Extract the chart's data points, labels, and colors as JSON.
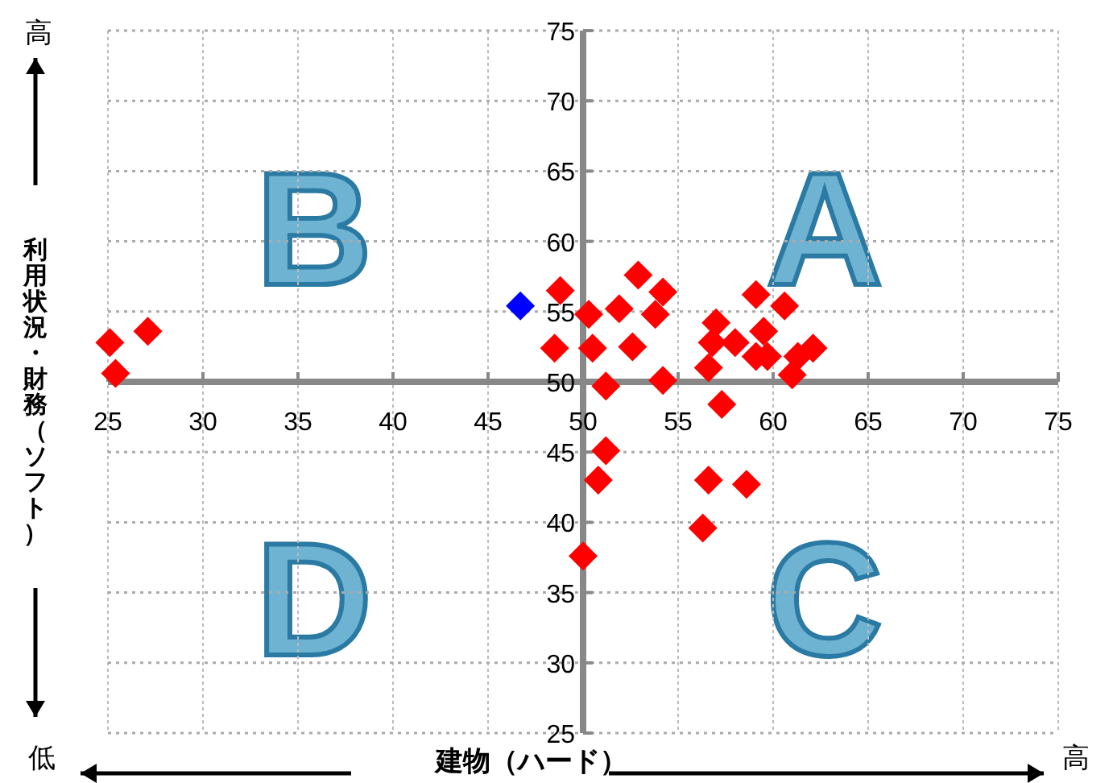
{
  "chart_data": {
    "type": "scatter",
    "xlabel": "建物（ハード）",
    "ylabel": "利用状況・財務（ソフト）",
    "annotations": [
      "A",
      "B",
      "C",
      "D",
      "高",
      "低",
      "高"
    ],
    "xlim": [
      25,
      75
    ],
    "ylim": [
      25,
      75
    ],
    "xticks": [
      25,
      30,
      35,
      40,
      45,
      50,
      55,
      60,
      65,
      70,
      75
    ],
    "yticks": [
      25,
      30,
      35,
      40,
      45,
      50,
      55,
      60,
      65,
      70,
      75
    ],
    "grid": true,
    "marker": "diamond",
    "series": [
      {
        "color": "#ff0000",
        "x": [
          25.1,
          25.4,
          27.1,
          48.8,
          48.5,
          50.3,
          50.5,
          51.2,
          51.9,
          52.6,
          52.9,
          53.8,
          54.2,
          54.2,
          57.0,
          56.8,
          56.6,
          57.3,
          58.0,
          59.1,
          59.1,
          59.5,
          59.7,
          60.6,
          61.0,
          61.3,
          62.1,
          51.2,
          50.8,
          50.0,
          56.6,
          58.6,
          56.3
        ],
        "values": [
          52.8,
          50.6,
          53.6,
          56.5,
          52.4,
          54.8,
          52.4,
          49.7,
          55.2,
          52.5,
          57.6,
          54.8,
          56.4,
          50.1,
          54.2,
          52.8,
          51.0,
          48.4,
          52.8,
          51.8,
          56.2,
          53.6,
          51.8,
          55.4,
          50.5,
          51.8,
          52.4,
          45.1,
          43.0,
          37.6,
          43.0,
          42.7,
          39.6
        ]
      },
      {
        "color": "#0000ff",
        "x": [
          46.7
        ],
        "values": [
          55.4
        ]
      }
    ]
  }
}
